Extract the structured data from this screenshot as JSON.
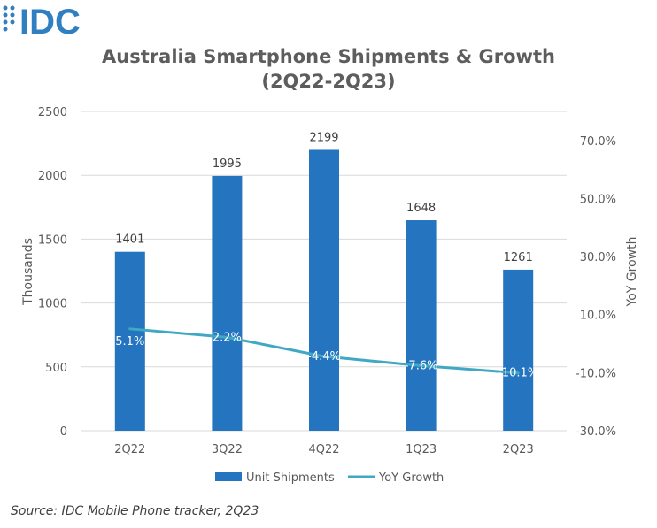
{
  "logo": {
    "text": "IDC",
    "color": "#2f7fc1"
  },
  "chart_data": {
    "type": "bar",
    "title": "Australia Smartphone Shipments & Growth",
    "subtitle": "(2Q22-2Q23)",
    "categories": [
      "2Q22",
      "3Q22",
      "4Q22",
      "1Q23",
      "2Q23"
    ],
    "series": [
      {
        "name": "Unit Shipments",
        "type": "bar",
        "axis": "left",
        "color": "#2474c0",
        "values": [
          1401,
          1995,
          2199,
          1648,
          1261
        ],
        "labels": [
          "1401",
          "1995",
          "2199",
          "1648",
          "1261"
        ]
      },
      {
        "name": "YoY Growth",
        "type": "line",
        "axis": "right",
        "color": "#41a8c4",
        "values": [
          5.1,
          2.2,
          -4.4,
          -7.6,
          -10.1
        ],
        "labels": [
          "5.1%",
          "2.2%",
          "-4.4%",
          "-7.6%",
          "-10.1%"
        ]
      }
    ],
    "ylabel": "Thousands",
    "y2label": "YoY Growth",
    "ylim": [
      0,
      2500
    ],
    "yticks": [
      "0",
      "500",
      "1000",
      "1500",
      "2000",
      "2500"
    ],
    "y2lim": [
      -30,
      80
    ],
    "y2ticks": [
      "-30.0%",
      "-10.0%",
      "10.0%",
      "30.0%",
      "50.0%",
      "70.0%"
    ],
    "y2tick_values": [
      -30,
      -10,
      10,
      30,
      50,
      70
    ],
    "grid": true,
    "legend": "bottom"
  },
  "footer": {
    "source": "Source: IDC Mobile Phone tracker, 2Q23"
  },
  "colors": {
    "gridline": "#d9d9d9",
    "axis_text": "#595959",
    "bar": "#2474c0",
    "line": "#41a8c4"
  }
}
